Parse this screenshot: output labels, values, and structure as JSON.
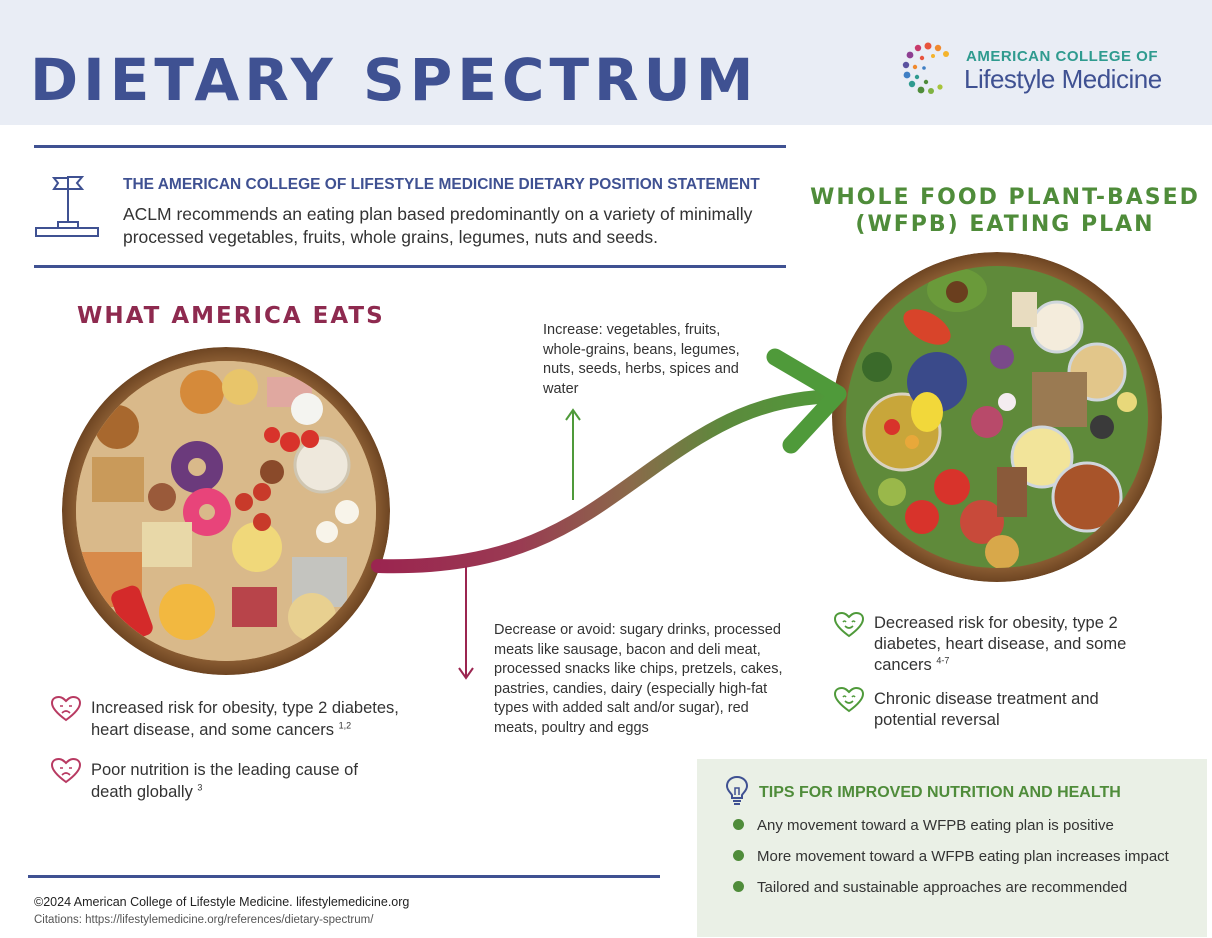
{
  "header": {
    "title": "DIETARY SPECTRUM",
    "logo": {
      "line1": "AMERICAN COLLEGE OF",
      "line2": "Lifestyle Medicine"
    }
  },
  "position_statement": {
    "heading": "THE AMERICAN COLLEGE OF LIFESTYLE MEDICINE DIETARY POSITION STATEMENT",
    "body": "ACLM recommends an eating plan based predominantly on a variety of minimally processed vegetables, fruits, whole grains, legumes, nuts and seeds."
  },
  "left_section": {
    "title": "WHAT AMERICA EATS",
    "benefits": [
      {
        "text": "Increased risk for obesity, type 2 diabetes, heart disease, and some cancers",
        "cite": "1,2"
      },
      {
        "text": "Poor nutrition is the leading cause of death globally",
        "cite": "3"
      }
    ]
  },
  "right_section": {
    "title_line1": "WHOLE FOOD PLANT-BASED",
    "title_line2": "(WFPB) EATING PLAN",
    "benefits": [
      {
        "text": "Decreased risk for obesity, type 2 diabetes, heart disease, and some cancers",
        "cite": "4-7"
      },
      {
        "text": "Chronic disease treatment and potential reversal",
        "cite": ""
      }
    ]
  },
  "flow": {
    "increase": "Increase: vegetables, fruits, whole-grains, beans, legumes, nuts, seeds, herbs, spices and water",
    "decrease": "Decrease or avoid: sugary drinks, processed meats like sausage, bacon and deli meat, processed snacks like chips, pretzels, cakes, pastries, candies, dairy (especially high-fat types with added salt and/or sugar), red meats, poultry and eggs"
  },
  "tips": {
    "heading": "TIPS FOR IMPROVED NUTRITION AND HEALTH",
    "items": [
      "Any movement toward a WFPB eating plan is positive",
      "More movement toward a WFPB eating plan increases impact",
      "Tailored and sustainable approaches are recommended"
    ]
  },
  "footer": {
    "copyright": "©2024 American College of Lifestyle Medicine. lifestylemedicine.org",
    "citations": "Citations: https://lifestylemedicine.org/references/dietary-spectrum/"
  },
  "icons": {
    "position": "flag-podium-icon",
    "heart": "heart-face-icon",
    "tips": "lightbulb-icon",
    "logo": "dot-ring-logo-icon"
  },
  "colors": {
    "navy": "#3f5192",
    "green": "#4f8c3a",
    "maroon": "#8e2a4f",
    "teal": "#2f9b8f",
    "header_bg": "#e9edf5",
    "tips_bg": "#eaf0e6"
  }
}
